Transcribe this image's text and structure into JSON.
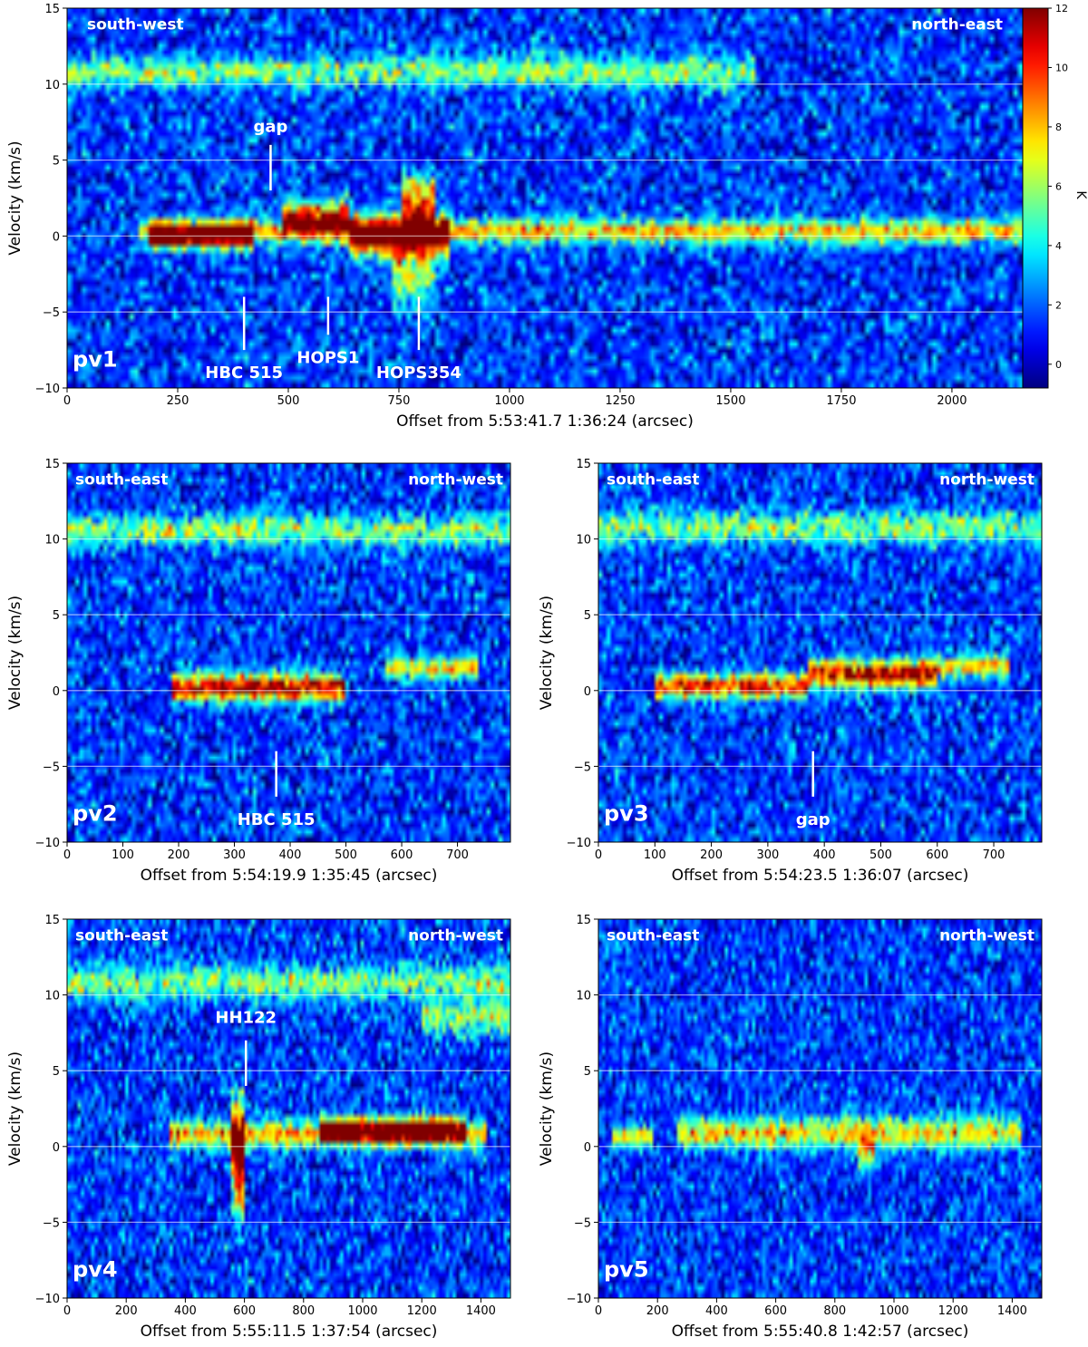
{
  "figure_colorbar": {
    "label": "K",
    "ticks": [
      "0",
      "2",
      "4",
      "6",
      "8",
      "10",
      "12"
    ],
    "range": [
      -0.8,
      12
    ],
    "colormap": "jet"
  },
  "chart_data": [
    {
      "type": "heatmap",
      "panel_label": "pv1",
      "xlabel": "Offset from 5:53:41.7 1:36:24 (arcsec)",
      "ylabel": "Velocity (km/s)",
      "xlim": [
        0,
        2160
      ],
      "ylim": [
        -10,
        15
      ],
      "xticks": [
        0,
        250,
        500,
        750,
        1000,
        1250,
        1500,
        1750,
        2000
      ],
      "yticks": [
        -10,
        -5,
        0,
        5,
        10,
        15
      ],
      "hlines": [
        -5,
        0,
        5,
        10
      ],
      "direction_left": "south-west",
      "direction_right": "north-east",
      "noise_K": 2.2,
      "bands": [
        {
          "v": 0.3,
          "x0": 160,
          "x1": 2160,
          "peak": 6.5,
          "width": 0.55
        },
        {
          "v": 0.0,
          "x0": 180,
          "x1": 420,
          "peak": 10.5,
          "width": 0.5
        },
        {
          "v": 1.2,
          "x0": 490,
          "x1": 640,
          "peak": 9.5,
          "width": 0.7
        },
        {
          "v": 0.0,
          "x0": 640,
          "x1": 860,
          "peak": 10.0,
          "width": 0.9
        },
        {
          "v": 2.2,
          "x0": 760,
          "x1": 830,
          "peak": 8.0,
          "width": 1.1
        },
        {
          "v": -2.5,
          "x0": 730,
          "x1": 830,
          "peak": 4.5,
          "width": 1.6
        },
        {
          "v": 10.8,
          "x0": 0,
          "x1": 1550,
          "peak": 4.3,
          "width": 0.7
        }
      ],
      "annotations": [
        {
          "text": "gap",
          "x": 460,
          "v0": 3.0,
          "v1": 6.0,
          "label_v": 7.2
        },
        {
          "text": "HBC 515",
          "x": 400,
          "v0": -4.0,
          "v1": -7.5,
          "label_v": -9.0
        },
        {
          "text": "HOPS1",
          "x": 590,
          "v0": -4.0,
          "v1": -6.5,
          "label_v": -8.0
        },
        {
          "text": "HOPS354",
          "x": 795,
          "v0": -4.0,
          "v1": -7.5,
          "label_v": -9.0
        }
      ]
    },
    {
      "type": "heatmap",
      "panel_label": "pv2",
      "xlabel": "Offset from 5:54:19.9 1:35:45 (arcsec)",
      "ylabel": "Velocity (km/s)",
      "xlim": [
        0,
        795
      ],
      "ylim": [
        -10,
        15
      ],
      "xticks": [
        0,
        100,
        200,
        300,
        400,
        500,
        600,
        700
      ],
      "yticks": [
        -10,
        -5,
        0,
        5,
        10,
        15
      ],
      "hlines": [
        -5,
        0,
        5,
        10
      ],
      "direction_left": "south-east",
      "direction_right": "north-west",
      "noise_K": 2.2,
      "bands": [
        {
          "v": 0.2,
          "x0": 190,
          "x1": 500,
          "peak": 10.0,
          "width": 0.6
        },
        {
          "v": 1.5,
          "x0": 570,
          "x1": 740,
          "peak": 6.0,
          "width": 0.5
        },
        {
          "v": 10.6,
          "x0": 0,
          "x1": 795,
          "peak": 4.3,
          "width": 0.7
        }
      ],
      "annotations": [
        {
          "text": "HBC 515",
          "x": 375,
          "v0": -4.0,
          "v1": -7.0,
          "label_v": -8.5
        }
      ]
    },
    {
      "type": "heatmap",
      "panel_label": "pv3",
      "xlabel": "Offset from 5:54:23.5 1:36:07 (arcsec)",
      "ylabel": "Velocity (km/s)",
      "xlim": [
        0,
        785
      ],
      "ylim": [
        -10,
        15
      ],
      "xticks": [
        0,
        100,
        200,
        300,
        400,
        500,
        600,
        700
      ],
      "yticks": [
        -10,
        -5,
        0,
        5,
        10,
        15
      ],
      "hlines": [
        -5,
        0,
        5,
        10
      ],
      "direction_left": "south-east",
      "direction_right": "north-west",
      "noise_K": 2.2,
      "bands": [
        {
          "v": 0.3,
          "x0": 100,
          "x1": 370,
          "peak": 9.0,
          "width": 0.55
        },
        {
          "v": 1.1,
          "x0": 370,
          "x1": 600,
          "peak": 10.5,
          "width": 0.6
        },
        {
          "v": 1.6,
          "x0": 600,
          "x1": 730,
          "peak": 6.5,
          "width": 0.5
        },
        {
          "v": 10.8,
          "x0": 0,
          "x1": 785,
          "peak": 4.3,
          "width": 0.7
        }
      ],
      "annotations": [
        {
          "text": "gap",
          "x": 380,
          "v0": -4.0,
          "v1": -7.0,
          "label_v": -8.5
        }
      ]
    },
    {
      "type": "heatmap",
      "panel_label": "pv4",
      "xlabel": "Offset from 5:55:11.5 1:37:54 (arcsec)",
      "ylabel": "Velocity (km/s)",
      "xlim": [
        0,
        1500
      ],
      "ylim": [
        -10,
        15
      ],
      "xticks": [
        0,
        200,
        400,
        600,
        800,
        1000,
        1200,
        1400
      ],
      "yticks": [
        -10,
        -5,
        0,
        5,
        10,
        15
      ],
      "hlines": [
        -5,
        0,
        5,
        10
      ],
      "direction_left": "south-east",
      "direction_right": "north-west",
      "noise_K": 2.2,
      "bands": [
        {
          "v": 0.8,
          "x0": 350,
          "x1": 1420,
          "peak": 7.0,
          "width": 0.6
        },
        {
          "v": 1.1,
          "x0": 850,
          "x1": 1350,
          "peak": 10.0,
          "width": 0.5
        },
        {
          "v": 0.0,
          "x0": 555,
          "x1": 600,
          "peak": 9.0,
          "width": 2.2
        },
        {
          "v": -3.0,
          "x0": 560,
          "x1": 600,
          "peak": 4.0,
          "width": 1.5
        },
        {
          "v": 10.8,
          "x0": 0,
          "x1": 1500,
          "peak": 4.2,
          "width": 0.8
        },
        {
          "v": 8.5,
          "x0": 1200,
          "x1": 1500,
          "peak": 4.0,
          "width": 0.8
        }
      ],
      "annotations": [
        {
          "text": "HH122",
          "x": 605,
          "v0": 4.0,
          "v1": 7.0,
          "label_v": 8.5
        }
      ]
    },
    {
      "type": "heatmap",
      "panel_label": "pv5",
      "xlabel": "Offset from 5:55:40.8 1:42:57 (arcsec)",
      "ylabel": "Velocity (km/s)",
      "xlim": [
        0,
        1500
      ],
      "ylim": [
        -10,
        15
      ],
      "xticks": [
        0,
        200,
        400,
        600,
        800,
        1000,
        1200,
        1400
      ],
      "yticks": [
        -10,
        -5,
        0,
        5,
        10,
        15
      ],
      "hlines": [
        -5,
        0,
        5,
        10
      ],
      "direction_left": "south-east",
      "direction_right": "north-west",
      "noise_K": 2.0,
      "bands": [
        {
          "v": 0.6,
          "x0": 50,
          "x1": 180,
          "peak": 6.0,
          "width": 0.5
        },
        {
          "v": 0.9,
          "x0": 270,
          "x1": 1430,
          "peak": 6.0,
          "width": 0.7
        },
        {
          "v": -0.2,
          "x0": 880,
          "x1": 940,
          "peak": 5.0,
          "width": 0.8
        }
      ],
      "annotations": []
    }
  ]
}
